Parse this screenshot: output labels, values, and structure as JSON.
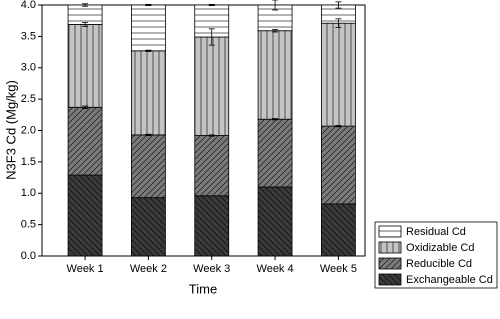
{
  "chart_data": {
    "type": "stacked-bar",
    "x_label": "Time",
    "y_label": "N3F3 Cd (Mg/kg)",
    "categories": [
      "Week 1",
      "Week 2",
      "Week 3",
      "Week 4",
      "Week 5"
    ],
    "series": [
      {
        "name": "Exchangeable Cd",
        "color": "#3a3a3a",
        "pattern": "back-diagonal",
        "values": [
          1.29,
          0.93,
          0.96,
          1.1,
          0.83
        ]
      },
      {
        "name": "Reducible Cd",
        "color": "#7a7a7a",
        "pattern": "diagonal",
        "values": [
          1.08,
          1.0,
          0.96,
          1.08,
          1.24
        ],
        "errors": [
          0.02,
          0.01,
          0.01,
          0.01,
          0.01
        ]
      },
      {
        "name": "Oxidizable Cd",
        "color": "#c4c4c4",
        "pattern": "vertical",
        "values": [
          1.32,
          1.34,
          1.57,
          1.41,
          1.64
        ],
        "errors": [
          0.03,
          0.01,
          0.13,
          0.02,
          0.07
        ]
      },
      {
        "name": "Residual Cd",
        "color": "#ffffff",
        "pattern": "horizontal",
        "values": [
          0.31,
          0.73,
          0.51,
          0.41,
          0.29
        ],
        "errors": [
          0.02,
          0.01,
          0.01,
          0.08,
          0.05
        ]
      }
    ],
    "ylim": [
      0,
      4
    ],
    "yticks": [
      {
        "value": 0,
        "label": "0.0"
      },
      0.5,
      {
        "value": 1,
        "label": "1.0"
      },
      1.5,
      {
        "value": 2,
        "label": "2.0"
      },
      2.5,
      {
        "value": 3,
        "label": "3.0"
      },
      3.5,
      {
        "value": 4,
        "label": "4.0"
      }
    ],
    "grid": false,
    "legend": "lower-right-outside"
  }
}
